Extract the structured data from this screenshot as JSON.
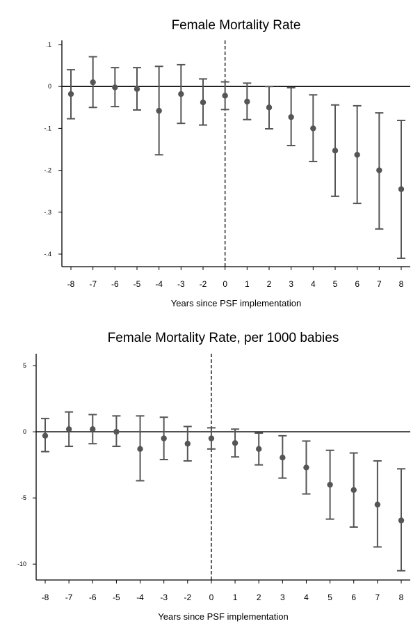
{
  "chart_data": [
    {
      "type": "scatter",
      "title": "Female Mortality Rate",
      "xlabel": "Years since PSF implementation",
      "ylabel": "",
      "categories": [
        "-8",
        "-7",
        "-6",
        "-5",
        "-4",
        "-3",
        "-2",
        "0",
        "1",
        "2",
        "3",
        "4",
        "5",
        "6",
        "7",
        "8"
      ],
      "ylim": [
        -0.43,
        0.11
      ],
      "yticks": [
        0.1,
        0,
        -0.1,
        -0.2,
        -0.3,
        -0.4
      ],
      "ytick_labels": [
        ".1",
        "0",
        "-.1",
        "-.2",
        "-.3",
        "-.4"
      ],
      "reference_line_at": "0",
      "point_color": "#555555",
      "series": [
        {
          "estimate": [
            -0.018,
            0.01,
            -0.002,
            -0.006,
            -0.058,
            -0.018,
            -0.038,
            -0.022,
            -0.036,
            -0.05,
            -0.073,
            -0.1,
            -0.153,
            -0.163,
            -0.2,
            -0.245
          ],
          "ci_low": [
            -0.077,
            -0.05,
            -0.048,
            -0.056,
            -0.163,
            -0.088,
            -0.092,
            -0.055,
            -0.079,
            -0.101,
            -0.141,
            -0.179,
            -0.262,
            -0.279,
            -0.34,
            -0.41
          ],
          "ci_high": [
            0.04,
            0.071,
            0.045,
            0.045,
            0.048,
            0.052,
            0.018,
            0.011,
            0.008,
            0.0,
            -0.003,
            -0.02,
            -0.044,
            -0.046,
            -0.063,
            -0.081
          ]
        }
      ]
    },
    {
      "type": "scatter",
      "title": "Female Mortality Rate, per 1000 babies",
      "xlabel": "Years since PSF implementation",
      "ylabel": "",
      "categories": [
        "-8",
        "-7",
        "-6",
        "-5",
        "-4",
        "-3",
        "-2",
        "0",
        "1",
        "2",
        "3",
        "4",
        "5",
        "6",
        "7",
        "8"
      ],
      "ylim": [
        -11.2,
        5.9
      ],
      "yticks": [
        5,
        0,
        -5,
        -10
      ],
      "ytick_labels": [
        "5",
        "0",
        "-5",
        "-10"
      ],
      "reference_line_at": "0",
      "point_color": "#555555",
      "series": [
        {
          "estimate": [
            -0.3,
            0.2,
            0.2,
            0.0,
            -1.3,
            -0.5,
            -0.9,
            -0.5,
            -0.85,
            -1.3,
            -1.95,
            -2.7,
            -4.0,
            -4.4,
            -5.5,
            -6.7
          ],
          "ci_low": [
            -1.5,
            -1.1,
            -0.9,
            -1.1,
            -3.7,
            -2.1,
            -2.2,
            -1.3,
            -1.9,
            -2.5,
            -3.5,
            -4.7,
            -6.6,
            -7.2,
            -8.7,
            -10.5
          ],
          "ci_high": [
            1.0,
            1.5,
            1.3,
            1.2,
            1.2,
            1.1,
            0.4,
            0.3,
            0.2,
            -0.1,
            -0.3,
            -0.7,
            -1.4,
            -1.6,
            -2.2,
            -2.8
          ]
        }
      ]
    }
  ]
}
